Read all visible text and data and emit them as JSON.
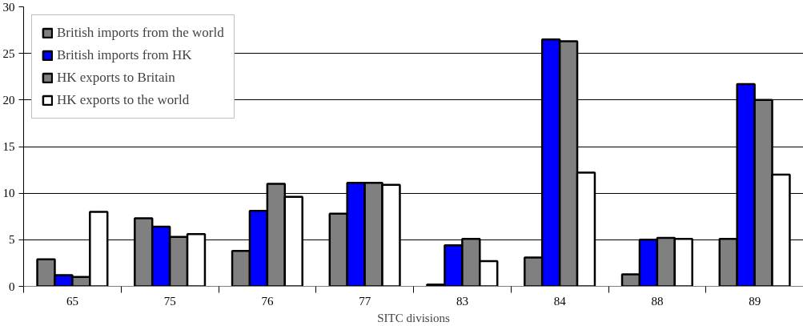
{
  "chart_data": {
    "type": "bar",
    "xlabel": "SITC divisions",
    "categories": [
      "65",
      "75",
      "76",
      "77",
      "83",
      "84",
      "88",
      "89"
    ],
    "series": [
      {
        "name": "British imports from the world",
        "color": "#808080",
        "values": [
          2.9,
          7.3,
          3.8,
          7.8,
          0.2,
          3.1,
          1.3,
          5.1
        ]
      },
      {
        "name": "British imports from HK",
        "color": "#0000ff",
        "values": [
          1.2,
          6.4,
          8.1,
          11.1,
          4.4,
          26.5,
          5.0,
          21.7
        ]
      },
      {
        "name": "HK exports to Britain",
        "color": "#808080",
        "values": [
          1.0,
          5.3,
          11.0,
          11.1,
          5.1,
          26.3,
          5.2,
          20.0
        ]
      },
      {
        "name": "HK exports to the world",
        "color": "#ffffff",
        "values": [
          8.0,
          5.6,
          9.6,
          10.9,
          2.7,
          12.2,
          5.1,
          12.0
        ]
      }
    ],
    "ylim": [
      0,
      30
    ],
    "yticks": [
      0,
      5,
      10,
      15,
      20,
      25,
      30
    ],
    "grid": "y",
    "legend": "top left"
  }
}
